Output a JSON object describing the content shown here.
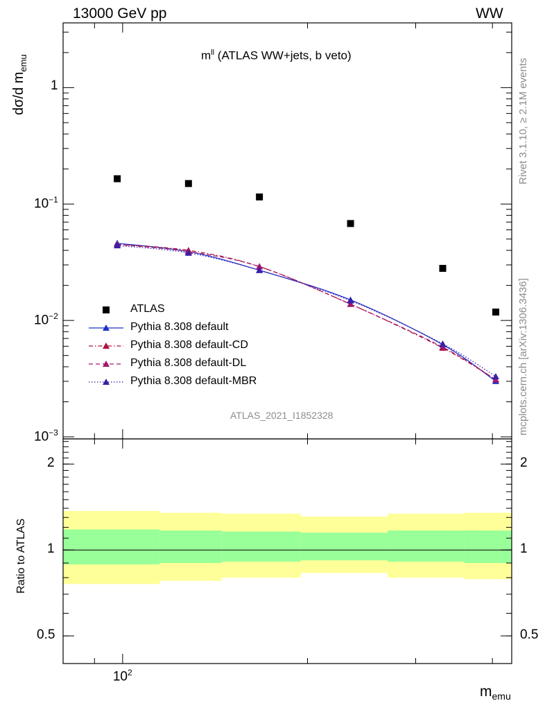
{
  "header": {
    "energy_label": "13000 GeV pp",
    "process_label": "WW"
  },
  "side": {
    "rivet_label": "Rivet 3.1.10, ≥ 2.1M events",
    "mcplots_label": "mcplots.cern.ch [arXiv:1306.3436]"
  },
  "chart_data": {
    "type": "scatter",
    "title_main": "m",
    "title_sup": "ll",
    "title_rest": " (ATLAS WW+jets, b veto)",
    "watermark": "ATLAS_2021_I1852328",
    "xlabel_main": "m",
    "xlabel_sub": "emu",
    "ylabel_main": "dσ/d m",
    "ylabel_sub": "emu",
    "ratio_ylabel": "Ratio to ATLAS",
    "x_scale": "log",
    "y_scale": "log",
    "xlim": [
      80,
      430
    ],
    "ylim": [
      0.00096,
      3.6
    ],
    "ratio_ylim": [
      0.4,
      2.45
    ],
    "grid": false,
    "legend_position": "bottom-left",
    "x_tick_labels": [
      {
        "value": 100,
        "base": "10",
        "exp": "2"
      }
    ],
    "y_tick_labels": [
      {
        "value": 0.001,
        "base": "10",
        "exp": "−3"
      },
      {
        "value": 0.01,
        "base": "10",
        "exp": "−2"
      },
      {
        "value": 0.1,
        "base": "10",
        "exp": "−1"
      },
      {
        "value": 1,
        "base": "1",
        "exp": ""
      }
    ],
    "ratio_tick_labels": [
      {
        "value": 0.5,
        "label": "0.5"
      },
      {
        "value": 1,
        "label": "1"
      },
      {
        "value": 2,
        "label": "2"
      }
    ],
    "bins": [
      {
        "lo": 80,
        "hi": 115
      },
      {
        "lo": 115,
        "hi": 145
      },
      {
        "lo": 145,
        "hi": 195
      },
      {
        "lo": 195,
        "hi": 270
      },
      {
        "lo": 270,
        "hi": 360
      },
      {
        "lo": 360,
        "hi": 430
      }
    ],
    "x": [
      98,
      128,
      167,
      235,
      332,
      405
    ],
    "data": {
      "name": "ATLAS",
      "color": "#000000",
      "values": [
        0.165,
        0.15,
        0.115,
        0.068,
        0.028,
        0.0118
      ]
    },
    "series": [
      {
        "name": "Pythia 8.308 default",
        "color": "#1f31c9",
        "dash": "solid",
        "values": [
          0.046,
          0.039,
          0.027,
          0.015,
          0.0062,
          0.003
        ]
      },
      {
        "name": "Pythia 8.308 default-CD",
        "color": "#b0123d",
        "dash": "dashdot",
        "values": [
          0.045,
          0.04,
          0.029,
          0.0138,
          0.0058,
          0.0031
        ]
      },
      {
        "name": "Pythia 8.308 default-DL",
        "color": "#a0176a",
        "dash": "dashed",
        "values": [
          0.045,
          0.039,
          0.029,
          0.0138,
          0.0059,
          0.0031
        ]
      },
      {
        "name": "Pythia 8.308 default-MBR",
        "color": "#3a1fa8",
        "dash": "dotted",
        "values": [
          0.044,
          0.038,
          0.027,
          0.0148,
          0.0063,
          0.0033
        ]
      }
    ],
    "ratio_bands": {
      "inner_color": "#99ff99",
      "outer_color": "#ffff99",
      "inner": [
        [
          0.89,
          1.18
        ],
        [
          0.9,
          1.17
        ],
        [
          0.91,
          1.16
        ],
        [
          0.92,
          1.15
        ],
        [
          0.91,
          1.17
        ],
        [
          0.9,
          1.17
        ]
      ],
      "outer": [
        [
          0.76,
          1.37
        ],
        [
          0.78,
          1.35
        ],
        [
          0.8,
          1.34
        ],
        [
          0.83,
          1.31
        ],
        [
          0.8,
          1.34
        ],
        [
          0.79,
          1.35
        ]
      ]
    }
  }
}
